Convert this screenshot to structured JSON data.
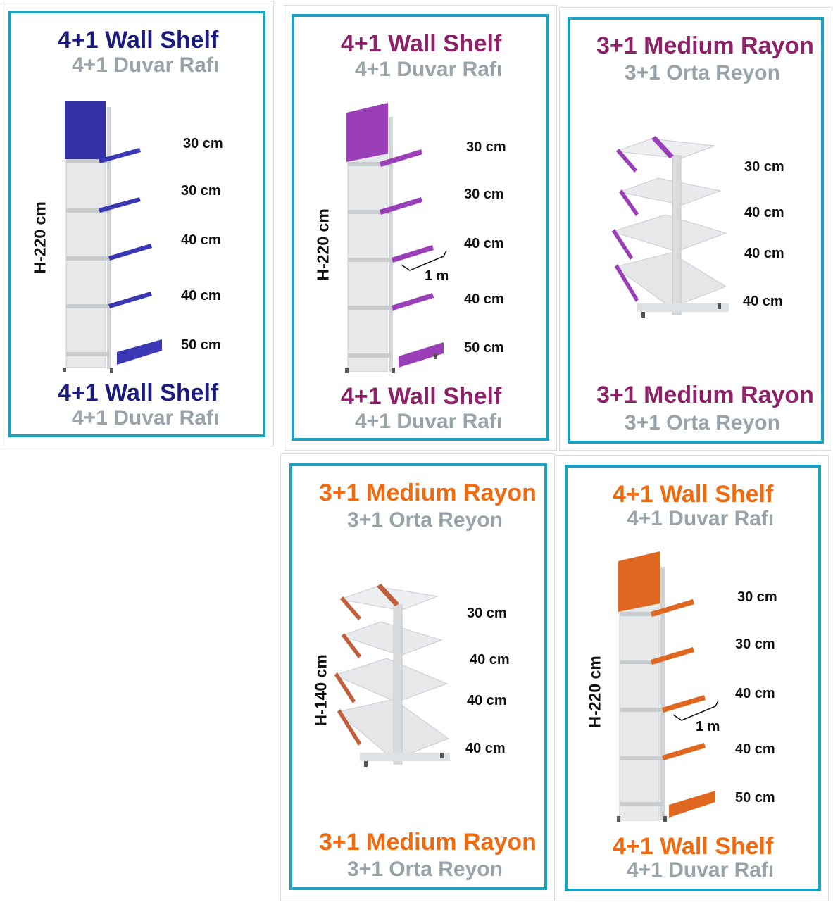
{
  "colors": {
    "navy": "#1b1a7d",
    "purple": "#8c2368",
    "orange": "#f06a10",
    "gray": "#98a4aa",
    "frame": "#1aa2c0"
  },
  "cards": [
    {
      "title": "4+1 Wall Shelf",
      "subtitle": "4+1 Duvar Rafı",
      "height": "H-220 cm",
      "dims": [
        "30 cm",
        "30 cm",
        "40 cm",
        "40 cm",
        "50 cm"
      ],
      "accent": "#3b38b5"
    },
    {
      "title": "4+1 Wall Shelf",
      "subtitle": "4+1 Duvar Rafı",
      "height": "H-220 cm",
      "dims": [
        "30 cm",
        "30 cm",
        "40 cm",
        "40 cm",
        "50 cm"
      ],
      "width": "1 m",
      "accent": "#9a3fb8"
    },
    {
      "title": "3+1 Medium Rayon",
      "subtitle": "3+1 Orta Reyon",
      "dims": [
        "30 cm",
        "40 cm",
        "40 cm",
        "40 cm"
      ],
      "accent": "#9a3fb8"
    },
    {
      "title": "3+1 Medium Rayon",
      "subtitle": "3+1 Orta Reyon",
      "height": "H-140 cm",
      "dims": [
        "30 cm",
        "40 cm",
        "40 cm",
        "40 cm"
      ],
      "accent": "#c05f3c"
    },
    {
      "title": "4+1 Wall Shelf",
      "subtitle": "4+1 Duvar Rafı",
      "height": "H-220 cm",
      "dims": [
        "30 cm",
        "30 cm",
        "40 cm",
        "40 cm",
        "50 cm"
      ],
      "width": "1 m",
      "accent": "#e0671f"
    }
  ]
}
